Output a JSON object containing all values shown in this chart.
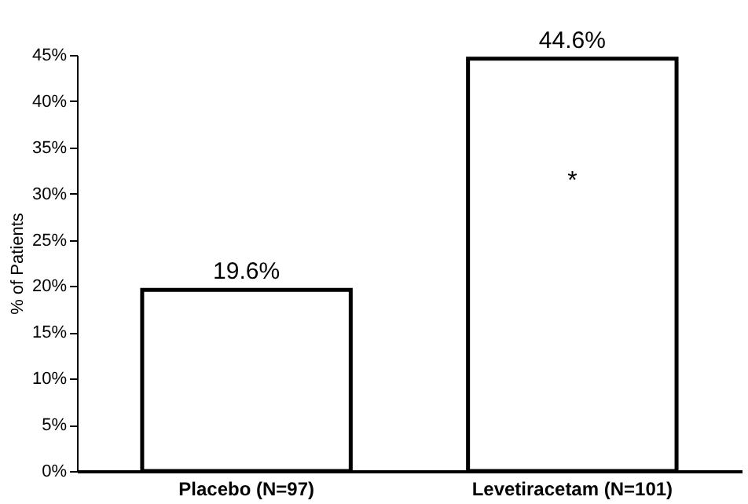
{
  "chart_data": {
    "type": "bar",
    "ylabel": "% of Patients",
    "categories": [
      "Placebo (N=97)",
      "Levetiracetam (N=101)"
    ],
    "values": [
      19.6,
      44.6
    ],
    "color": "#ffffff",
    "value_labels": [
      "19.6%",
      "44.6%"
    ],
    "ylim": [
      0,
      45
    ],
    "yticks": [
      {
        "value": 0,
        "label": "0%"
      },
      {
        "value": 5,
        "label": "5%"
      },
      {
        "value": 10,
        "label": "10%"
      },
      {
        "value": 15,
        "label": "15%"
      },
      {
        "value": 20,
        "label": "20%"
      },
      {
        "value": 25,
        "label": "25%"
      },
      {
        "value": 30,
        "label": "30%"
      },
      {
        "value": 35,
        "label": "35%"
      },
      {
        "value": 40,
        "label": "40%"
      },
      {
        "value": 45,
        "label": "45%"
      }
    ],
    "annotations": [
      "*"
    ],
    "grid": false
  }
}
